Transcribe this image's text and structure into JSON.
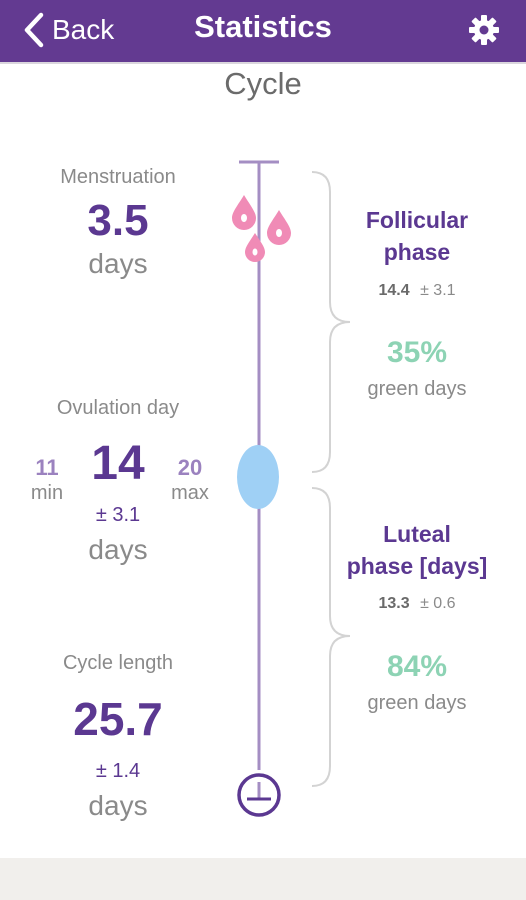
{
  "header": {
    "back_label": "Back",
    "title": "Statistics",
    "background_color": "#633a91",
    "icons": {
      "back": "chevron-left-icon",
      "settings": "gear-icon"
    }
  },
  "section_title": "Cycle",
  "menstruation": {
    "label": "Menstruation",
    "value": "3.5",
    "unit": "days"
  },
  "ovulation": {
    "label": "Ovulation day",
    "value": "14",
    "min_value": "11",
    "min_label": "min",
    "max_value": "20",
    "max_label": "max",
    "deviation": "± 3.1",
    "unit": "days"
  },
  "cycle_length": {
    "label": "Cycle length",
    "value": "25.7",
    "deviation": "± 1.4",
    "unit": "days"
  },
  "follicular": {
    "title_line1": "Follicular",
    "title_line2": "phase",
    "mean": "14.4",
    "deviation": "± 3.1",
    "green_percent": "35%",
    "green_label": "green days"
  },
  "luteal": {
    "title_line1": "Luteal",
    "title_line2": "phase [days]",
    "mean": "13.3",
    "deviation": "± 0.6",
    "green_percent": "84%",
    "green_label": "green days"
  },
  "colors": {
    "purple": "#5b3891",
    "timeline": "#a48ec3",
    "drop_pink": "#f08bb6",
    "ovulation_blue": "#9fd0f5",
    "green": "#8dd3b4"
  }
}
